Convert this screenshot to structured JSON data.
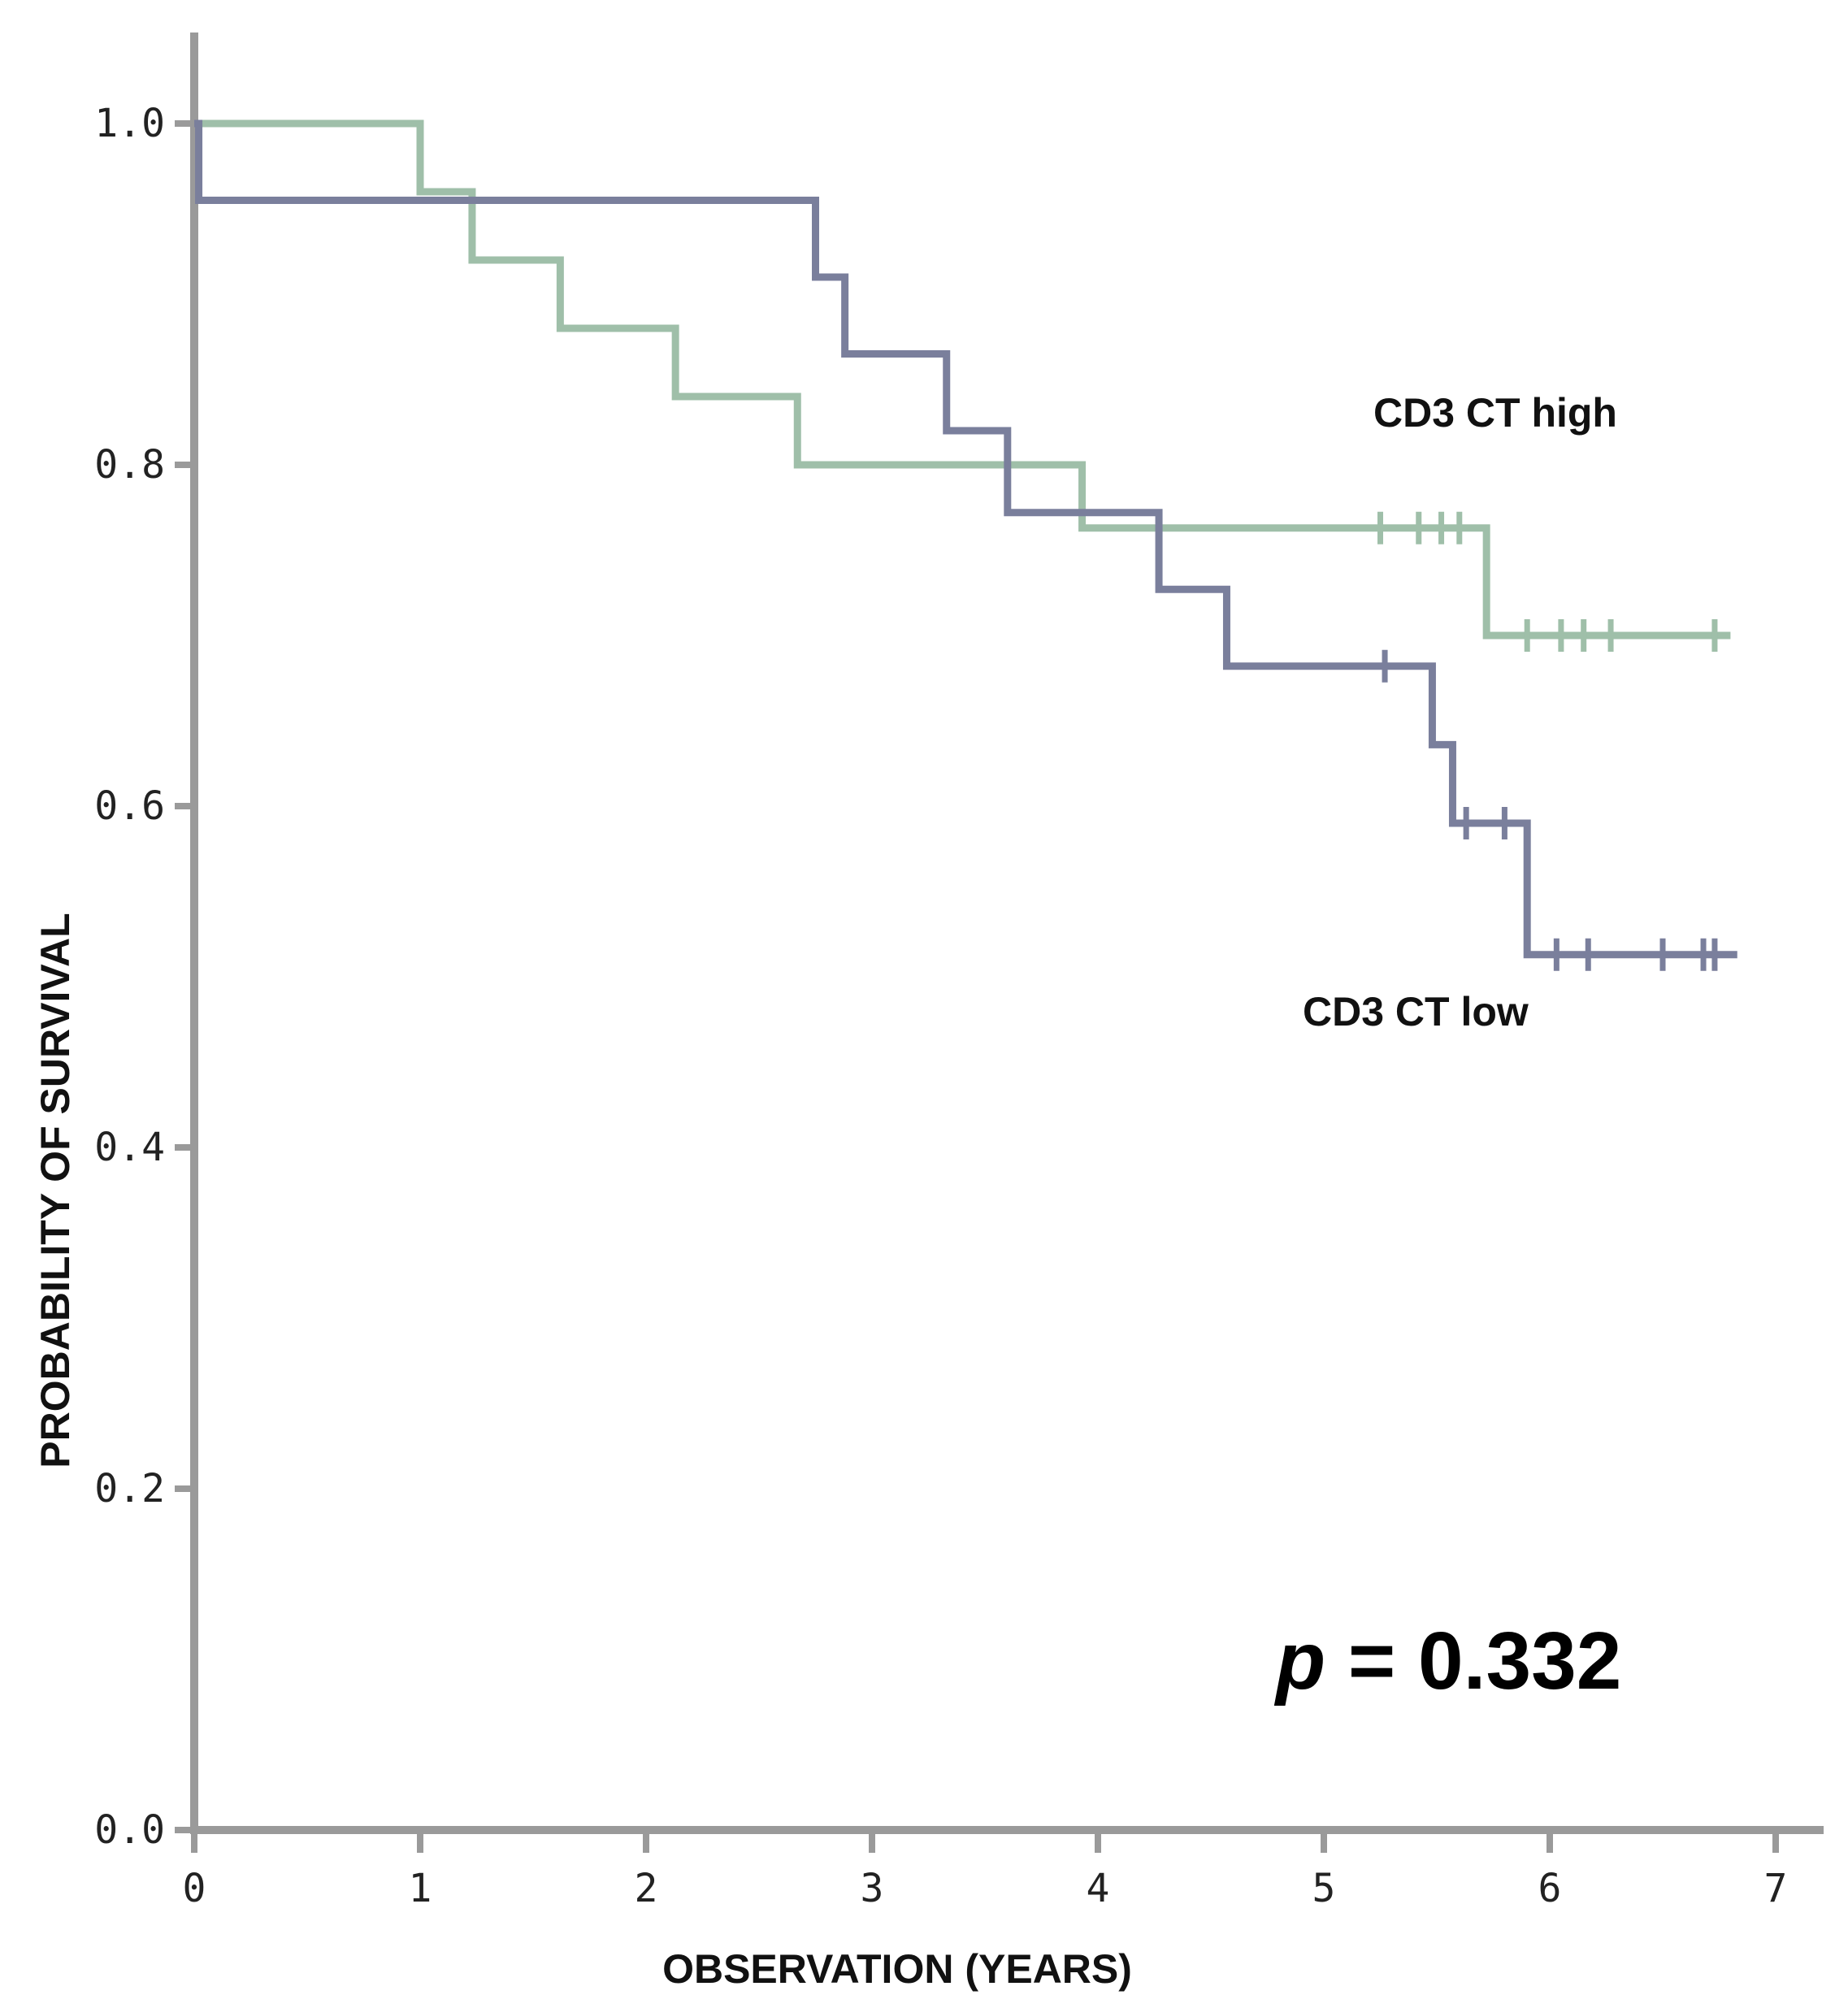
{
  "chart_data": {
    "type": "line",
    "subtype": "kaplan-meier",
    "title": "",
    "xlabel": "OBSERVATION (YEARS)",
    "ylabel": "PROBABILITY OF SURVIVAL",
    "xlim": [
      0,
      7.2
    ],
    "ylim": [
      0,
      1.05
    ],
    "x_ticks": [
      0,
      1,
      2,
      3,
      4,
      5,
      6,
      7
    ],
    "x_tick_labels": [
      "0",
      "1",
      "2",
      "3",
      "4",
      "5",
      "6",
      "7"
    ],
    "y_ticks": [
      0.0,
      0.2,
      0.4,
      0.6,
      0.8,
      1.0
    ],
    "y_tick_labels": [
      "0.0",
      "0.2",
      "0.4",
      "0.6",
      "0.8",
      "1.0"
    ],
    "grid": false,
    "series": [
      {
        "name": "CD3 CT high",
        "color": "#9fbfa9",
        "steps": [
          [
            0,
            1.0
          ],
          [
            1.0,
            0.96
          ],
          [
            1.23,
            0.92
          ],
          [
            1.62,
            0.88
          ],
          [
            2.13,
            0.84
          ],
          [
            2.67,
            0.8
          ],
          [
            3.93,
            0.763
          ],
          [
            5.72,
            0.7
          ],
          [
            6.8,
            0.7
          ]
        ],
        "censored": [
          [
            5.25,
            0.763
          ],
          [
            5.42,
            0.763
          ],
          [
            5.52,
            0.763
          ],
          [
            5.6,
            0.763
          ],
          [
            5.9,
            0.7
          ],
          [
            6.05,
            0.7
          ],
          [
            6.15,
            0.7
          ],
          [
            6.27,
            0.7
          ],
          [
            6.73,
            0.7
          ]
        ]
      },
      {
        "name": "CD3 CT low",
        "color": "#7a7f9c",
        "steps": [
          [
            0,
            1.0
          ],
          [
            0.02,
            0.955
          ],
          [
            2.75,
            0.91
          ],
          [
            2.88,
            0.865
          ],
          [
            3.33,
            0.82
          ],
          [
            3.6,
            0.772
          ],
          [
            4.27,
            0.727
          ],
          [
            4.57,
            0.682
          ],
          [
            5.48,
            0.636
          ],
          [
            5.57,
            0.59
          ],
          [
            5.9,
            0.513
          ],
          [
            6.83,
            0.513
          ]
        ],
        "censored": [
          [
            5.27,
            0.682
          ],
          [
            5.63,
            0.59
          ],
          [
            5.8,
            0.59
          ],
          [
            6.03,
            0.513
          ],
          [
            6.17,
            0.513
          ],
          [
            6.5,
            0.513
          ],
          [
            6.68,
            0.513
          ],
          [
            6.73,
            0.513
          ]
        ]
      }
    ],
    "annotations": [
      {
        "text": "CD3 CT high",
        "series": "CD3 CT high"
      },
      {
        "text": "CD3 CT low",
        "series": "CD3 CT low"
      }
    ],
    "p_value": {
      "prefix": "p",
      "text": " = 0.332"
    }
  }
}
